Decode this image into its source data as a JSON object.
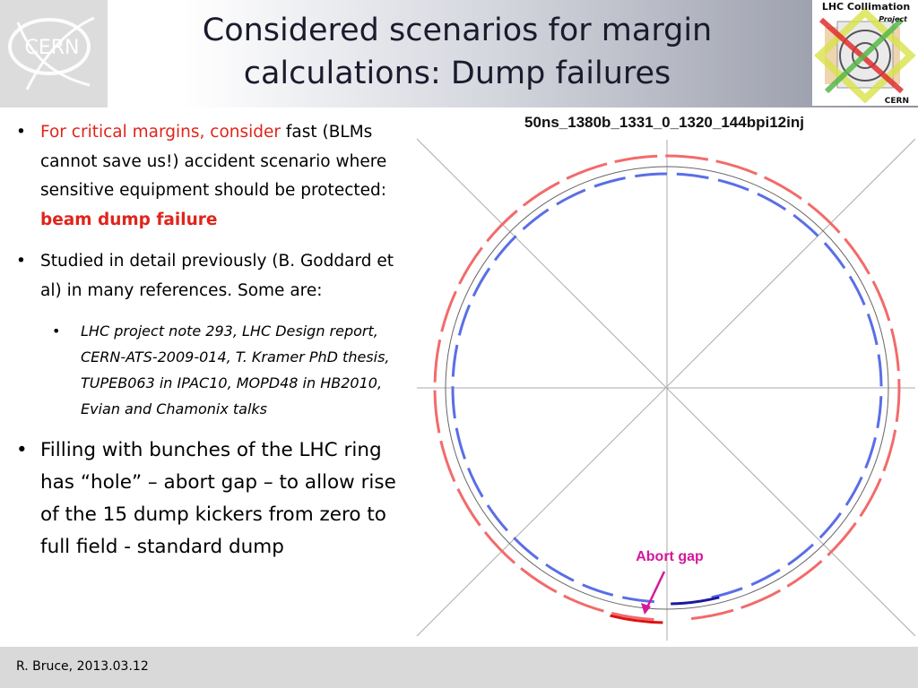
{
  "title": {
    "line1": "Considered scenarios for margin",
    "line2": "calculations: Dump failures"
  },
  "logos": {
    "cern_text": "CERN",
    "collimation_line1": "LHC Collimation",
    "collimation_line2": "Project",
    "collimation_line3": "CERN"
  },
  "bullets": {
    "b1": {
      "red_lead": "For critical margins, consider",
      "text": " fast (BLMs cannot save us!) accident scenario where sensitive equipment should be protected: ",
      "bold_red": "beam dump failure"
    },
    "b2": {
      "text": "Studied in detail previously (B. Goddard et al) in many references. Some are:"
    },
    "b2_sub": {
      "text": "LHC project note 293, LHC Design report, CERN-ATS-2009-014, T. Kramer PhD thesis, TUPEB063 in IPAC10, MOPD48 in HB2010, Evian and Chamonix talks"
    },
    "b3": {
      "text": "Filling with bunches of the LHC ring has “hole” – abort gap – to allow rise of the 15 dump kickers from zero to full field - standard dump"
    }
  },
  "chart_data": {
    "type": "other",
    "title": "50ns_1380b_1331_0_1320_144bpi12inj",
    "annotation": "Abort gap",
    "colors": {
      "beam1": "#f26b6b",
      "beam2": "#5a6ee6",
      "abort_marker": "#1919a0",
      "abort_gap_red": "#dd1111",
      "arrow": "#d4189a"
    }
  },
  "footer": {
    "text": "R. Bruce, 2013.03.12"
  }
}
